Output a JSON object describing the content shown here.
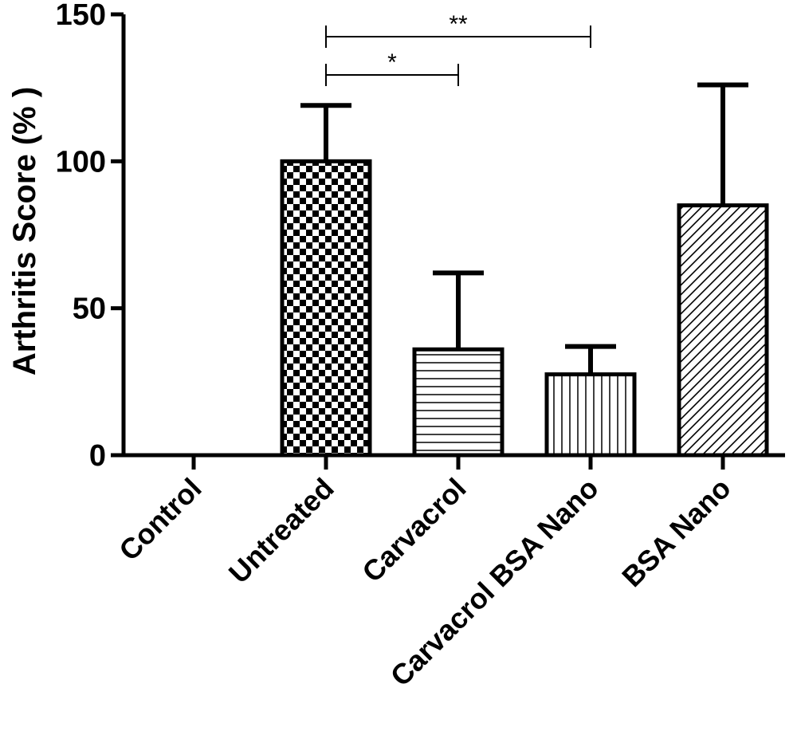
{
  "chart_data": {
    "type": "bar",
    "ylabel": "Arthritis Score (% )",
    "ylim": [
      0,
      150
    ],
    "yticks": [
      0,
      50,
      100,
      150
    ],
    "categories": [
      "Control",
      "Untreated",
      "Carvacrol",
      "Carvacrol BSA Nano",
      "BSA Nano"
    ],
    "values": [
      0,
      100,
      36,
      27.5,
      85
    ],
    "error_upper": [
      0,
      119,
      62,
      37,
      126
    ],
    "patterns": [
      "none",
      "checker",
      "horizontal",
      "vertical",
      "diagonal"
    ],
    "significance": [
      {
        "from": "Untreated",
        "to": "Carvacrol",
        "label": "*"
      },
      {
        "from": "Untreated",
        "to": "Carvacrol BSA Nano",
        "label": "**"
      }
    ],
    "grid": false,
    "legend": "none"
  }
}
